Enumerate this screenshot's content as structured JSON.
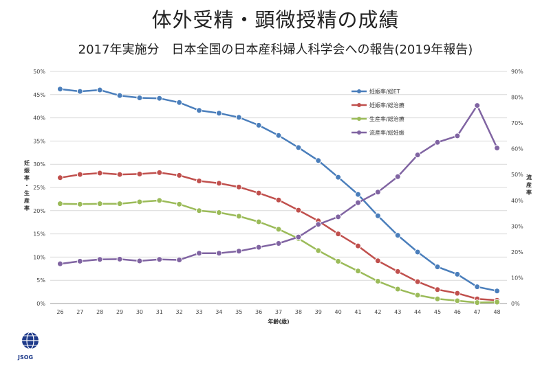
{
  "title": "体外受精・顕微授精の成績",
  "subtitle": "2017年実施分　日本全国の日本産科婦人科学会への報告(2019年報告)",
  "logo_text": "JSOG",
  "chart_data": {
    "type": "line",
    "xlabel": "年齢(歳)",
    "ylabel_left": "妊娠率・生産率",
    "ylabel_right": "流産率",
    "x": [
      26,
      27,
      28,
      29,
      30,
      31,
      32,
      33,
      34,
      35,
      36,
      37,
      38,
      39,
      40,
      41,
      42,
      43,
      44,
      45,
      46,
      47,
      48
    ],
    "ylim_left": [
      0,
      50
    ],
    "ylim_right": [
      0,
      90
    ],
    "yticks_left": [
      "0%",
      "5%",
      "10%",
      "15%",
      "20%",
      "25%",
      "30%",
      "35%",
      "40%",
      "45%",
      "50%"
    ],
    "yticks_right": [
      "0%",
      "10%",
      "20%",
      "30%",
      "40%",
      "50%",
      "60%",
      "70%",
      "80%",
      "90%"
    ],
    "grid": true,
    "legend_position": "top-right",
    "series": [
      {
        "name": "妊娠率/総ET",
        "axis": "left",
        "color": "#4a7ebb",
        "values": [
          46.2,
          45.7,
          46.0,
          44.8,
          44.3,
          44.2,
          43.3,
          41.6,
          41.0,
          40.1,
          38.4,
          36.2,
          33.6,
          30.8,
          27.2,
          23.5,
          18.9,
          14.7,
          11.1,
          7.9,
          6.3,
          3.6,
          2.7
        ]
      },
      {
        "name": "妊娠率/総治療",
        "axis": "left",
        "color": "#c0504d",
        "values": [
          27.1,
          27.8,
          28.1,
          27.8,
          27.9,
          28.2,
          27.6,
          26.4,
          25.9,
          25.1,
          23.8,
          22.3,
          20.1,
          17.8,
          15.0,
          12.4,
          9.2,
          6.9,
          4.7,
          3.0,
          2.2,
          1.0,
          0.7
        ]
      },
      {
        "name": "生産率/総治療",
        "axis": "left",
        "color": "#9bbb59",
        "values": [
          21.5,
          21.4,
          21.5,
          21.5,
          21.9,
          22.2,
          21.4,
          20.0,
          19.6,
          18.8,
          17.6,
          16.0,
          14.0,
          11.4,
          9.1,
          7.0,
          4.8,
          3.1,
          1.8,
          1.0,
          0.6,
          0.2,
          0.3
        ]
      },
      {
        "name": "流産率/総妊娠",
        "axis": "right",
        "color": "#8064a2",
        "values": [
          15.4,
          16.4,
          17.1,
          17.2,
          16.5,
          17.1,
          16.9,
          19.5,
          19.5,
          20.3,
          21.8,
          23.3,
          25.8,
          30.7,
          33.6,
          39.1,
          43.2,
          49.2,
          57.6,
          62.5,
          65.0,
          76.8,
          60.3
        ]
      }
    ]
  }
}
